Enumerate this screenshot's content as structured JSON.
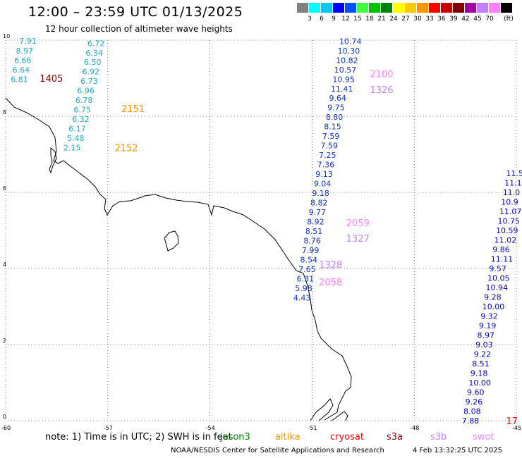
{
  "header": {
    "title": "12:00 – 23:59 UTC 01/13/2025",
    "subtitle": "12 hour collection of altimeter wave heights"
  },
  "colorbar": {
    "unit": "(ft)",
    "labels": [
      "3",
      "6",
      "9",
      "12",
      "15",
      "18",
      "21",
      "24",
      "27",
      "30",
      "33",
      "36",
      "39",
      "42",
      "45",
      "70"
    ],
    "colors": [
      "#808080",
      "#00ffff",
      "#00c8f0",
      "#0000ff",
      "#0050ff",
      "#40ff40",
      "#00c000",
      "#008000",
      "#ffff00",
      "#ffc800",
      "#ff9600",
      "#ff0000",
      "#c80000",
      "#800000",
      "#a000a0",
      "#c080ff",
      "#ff80ff",
      "#000000"
    ]
  },
  "axes": {
    "x_ticks": [
      "-60",
      "-57",
      "-54",
      "-51",
      "-48",
      "-45"
    ],
    "y_ticks": [
      "0",
      "2",
      "4",
      "6",
      "8",
      "10"
    ]
  },
  "map_data": {
    "lon_range": [
      -60,
      -45
    ],
    "lat_range": [
      0,
      10
    ],
    "tracks": [
      {
        "id": "track-west",
        "color": "#22aacc",
        "labels": [
          {
            "lon": -59.6,
            "lat": 9.98,
            "text": "7.91"
          },
          {
            "lon": -59.7,
            "lat": 9.72,
            "text": "8.97"
          },
          {
            "lon": -59.75,
            "lat": 9.47,
            "text": "6.66"
          },
          {
            "lon": -59.8,
            "lat": 9.22,
            "text": "6.64"
          },
          {
            "lon": -59.85,
            "lat": 8.97,
            "text": "6.81"
          },
          {
            "lon": -57.6,
            "lat": 9.92,
            "text": "6.72"
          },
          {
            "lon": -57.65,
            "lat": 9.67,
            "text": "6.34"
          },
          {
            "lon": -57.7,
            "lat": 9.43,
            "text": "6.50"
          },
          {
            "lon": -57.75,
            "lat": 9.18,
            "text": "6.92"
          },
          {
            "lon": -57.8,
            "lat": 8.93,
            "text": "6.73"
          },
          {
            "lon": -57.9,
            "lat": 8.68,
            "text": "6.96"
          },
          {
            "lon": -57.95,
            "lat": 8.43,
            "text": "6.78"
          },
          {
            "lon": -58.0,
            "lat": 8.18,
            "text": "6.75"
          },
          {
            "lon": -58.05,
            "lat": 7.93,
            "text": "6.32"
          },
          {
            "lon": -58.15,
            "lat": 7.68,
            "text": "6.17"
          },
          {
            "lon": -58.2,
            "lat": 7.43,
            "text": "5.48"
          },
          {
            "lon": -58.3,
            "lat": 7.18,
            "text": "2.15"
          }
        ]
      },
      {
        "id": "track-central",
        "color": "#1133cc",
        "labels": [
          {
            "lon": -50.2,
            "lat": 9.97,
            "text": "10.74"
          },
          {
            "lon": -50.25,
            "lat": 9.72,
            "text": "10.30"
          },
          {
            "lon": -50.3,
            "lat": 9.47,
            "text": "10.82"
          },
          {
            "lon": -50.35,
            "lat": 9.22,
            "text": "10.57"
          },
          {
            "lon": -50.4,
            "lat": 8.97,
            "text": "10.95"
          },
          {
            "lon": -50.45,
            "lat": 8.72,
            "text": "11.41"
          },
          {
            "lon": -50.5,
            "lat": 8.48,
            "text": "9.64"
          },
          {
            "lon": -50.55,
            "lat": 8.23,
            "text": "9.75"
          },
          {
            "lon": -50.6,
            "lat": 7.98,
            "text": "8.80"
          },
          {
            "lon": -50.65,
            "lat": 7.73,
            "text": "8.15"
          },
          {
            "lon": -50.7,
            "lat": 7.48,
            "text": "7.59"
          },
          {
            "lon": -50.75,
            "lat": 7.23,
            "text": "7.59"
          },
          {
            "lon": -50.8,
            "lat": 6.98,
            "text": "7.25"
          },
          {
            "lon": -50.85,
            "lat": 6.73,
            "text": "7.36"
          },
          {
            "lon": -50.9,
            "lat": 6.48,
            "text": "9.13"
          },
          {
            "lon": -50.95,
            "lat": 6.23,
            "text": "9.04"
          },
          {
            "lon": -51.0,
            "lat": 5.98,
            "text": "9.18"
          },
          {
            "lon": -51.05,
            "lat": 5.73,
            "text": "8.82"
          },
          {
            "lon": -51.1,
            "lat": 5.48,
            "text": "9.77"
          },
          {
            "lon": -51.15,
            "lat": 5.23,
            "text": "8.92"
          },
          {
            "lon": -51.2,
            "lat": 4.98,
            "text": "8.51"
          },
          {
            "lon": -51.25,
            "lat": 4.73,
            "text": "8.76"
          },
          {
            "lon": -51.3,
            "lat": 4.48,
            "text": "7.99"
          },
          {
            "lon": -51.35,
            "lat": 4.23,
            "text": "8.54"
          },
          {
            "lon": -51.4,
            "lat": 3.98,
            "text": "7.65"
          },
          {
            "lon": -51.45,
            "lat": 3.73,
            "text": "6.31"
          },
          {
            "lon": -51.5,
            "lat": 3.48,
            "text": "5.98"
          },
          {
            "lon": -51.55,
            "lat": 3.23,
            "text": "4.43"
          }
        ]
      },
      {
        "id": "track-east",
        "color": "#0000cc",
        "labels": [
          {
            "lon": -45.3,
            "lat": 6.5,
            "text": "11.5"
          },
          {
            "lon": -45.35,
            "lat": 6.25,
            "text": "11.1"
          },
          {
            "lon": -45.4,
            "lat": 6.0,
            "text": "11.0"
          },
          {
            "lon": -45.45,
            "lat": 5.75,
            "text": "10.9"
          },
          {
            "lon": -45.5,
            "lat": 5.5,
            "text": "11.07"
          },
          {
            "lon": -45.55,
            "lat": 5.25,
            "text": "10.75"
          },
          {
            "lon": -45.6,
            "lat": 5.0,
            "text": "10.59"
          },
          {
            "lon": -45.65,
            "lat": 4.75,
            "text": "11.02"
          },
          {
            "lon": -45.7,
            "lat": 4.5,
            "text": "9.86"
          },
          {
            "lon": -45.75,
            "lat": 4.25,
            "text": "11.11"
          },
          {
            "lon": -45.8,
            "lat": 4.0,
            "text": "9.57"
          },
          {
            "lon": -45.85,
            "lat": 3.75,
            "text": "10.05"
          },
          {
            "lon": -45.9,
            "lat": 3.5,
            "text": "10.94"
          },
          {
            "lon": -45.95,
            "lat": 3.25,
            "text": "9.28"
          },
          {
            "lon": -46.0,
            "lat": 3.0,
            "text": "10.00"
          },
          {
            "lon": -46.05,
            "lat": 2.75,
            "text": "9.32"
          },
          {
            "lon": -46.1,
            "lat": 2.5,
            "text": "9.19"
          },
          {
            "lon": -46.15,
            "lat": 2.25,
            "text": "8.97"
          },
          {
            "lon": -46.2,
            "lat": 2.0,
            "text": "9.03"
          },
          {
            "lon": -46.25,
            "lat": 1.75,
            "text": "9.22"
          },
          {
            "lon": -46.3,
            "lat": 1.5,
            "text": "8.51"
          },
          {
            "lon": -46.35,
            "lat": 1.25,
            "text": "9.18"
          },
          {
            "lon": -46.4,
            "lat": 1.0,
            "text": "10.00"
          },
          {
            "lon": -46.45,
            "lat": 0.75,
            "text": "9.60"
          },
          {
            "lon": -46.5,
            "lat": 0.5,
            "text": "9.26"
          },
          {
            "lon": -46.55,
            "lat": 0.25,
            "text": "8.08"
          },
          {
            "lon": -46.6,
            "lat": 0.0,
            "text": "7.88"
          }
        ]
      }
    ],
    "time_labels": [
      {
        "lon": -59.0,
        "lat": 9.0,
        "text": "1405",
        "color": "#800000"
      },
      {
        "lon": -49.3,
        "lat": 9.12,
        "text": "2100",
        "color": "#ff80ff"
      },
      {
        "lon": -49.3,
        "lat": 8.7,
        "text": "1326",
        "color": "#c080ff"
      },
      {
        "lon": -56.6,
        "lat": 8.2,
        "text": "2151",
        "color": "#ff9600"
      },
      {
        "lon": -56.8,
        "lat": 7.18,
        "text": "2152",
        "color": "#ff9600"
      },
      {
        "lon": -50.0,
        "lat": 5.2,
        "text": "2059",
        "color": "#ff80ff"
      },
      {
        "lon": -50.0,
        "lat": 4.8,
        "text": "1327",
        "color": "#c080ff"
      },
      {
        "lon": -50.8,
        "lat": 4.1,
        "text": "1328",
        "color": "#c080ff"
      },
      {
        "lon": -50.8,
        "lat": 3.65,
        "text": "2058",
        "color": "#ff80ff"
      },
      {
        "lon": -45.3,
        "lat": 0.0,
        "text": "17",
        "color": "#ff0000"
      }
    ]
  },
  "footer": {
    "note": "note: 1) Time is in UTC; 2) SWH is in feet",
    "satellites": [
      {
        "name": "jason3",
        "color": "#008000"
      },
      {
        "name": "altika",
        "color": "#ff9600"
      },
      {
        "name": "cryosat",
        "color": "#ff0000"
      },
      {
        "name": "s3a",
        "color": "#800000"
      },
      {
        "name": "s3b",
        "color": "#c080ff"
      },
      {
        "name": "swot",
        "color": "#ff80ff"
      }
    ],
    "credit": "NOAA/NESDIS Center for Satellite Applications and Research",
    "timestamp": "4 Feb 13:32:25 UTC 2025"
  }
}
